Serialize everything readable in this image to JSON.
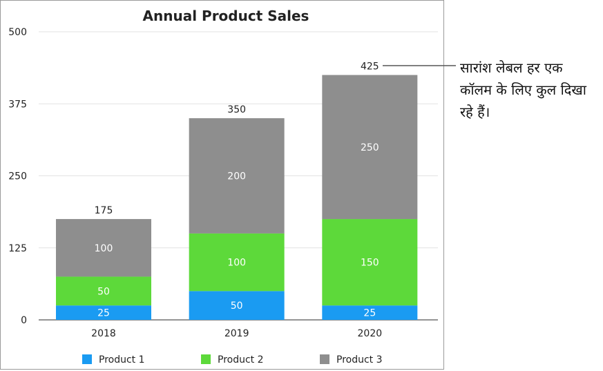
{
  "chart_data": {
    "type": "bar",
    "stacked": true,
    "title": "Annual Product Sales",
    "categories": [
      "2018",
      "2019",
      "2020"
    ],
    "series": [
      {
        "name": "Product 1",
        "values": [
          25,
          50,
          25
        ],
        "color": "#1a9bf2"
      },
      {
        "name": "Product 2",
        "values": [
          50,
          100,
          150
        ],
        "color": "#5dd93a"
      },
      {
        "name": "Product 3",
        "values": [
          100,
          200,
          250
        ],
        "color": "#8e8e8e"
      }
    ],
    "totals": [
      175,
      350,
      425
    ],
    "ylim": [
      0,
      500
    ],
    "yticks": [
      0,
      125,
      250,
      375,
      500
    ],
    "grid": true,
    "legend": "bottom"
  },
  "callout": {
    "text": "सारांश लेबल हर एक कॉलम के लिए कुल दिखा रहे हैं।"
  }
}
